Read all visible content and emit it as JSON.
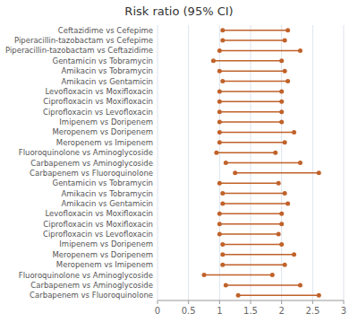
{
  "chart_data": {
    "type": "range",
    "orientation": "horizontal",
    "title": "Risk ratio (95% CI)",
    "color": "#c0622a",
    "categories": [
      "Ceftazidime vs Cefepime",
      "Piperacillin-tazobactam vs Cefepime",
      "Piperacillin-tazobactam vs Ceftazidime",
      "Gentamicin vs Tobramycin",
      "Amikacin vs Tobramycin",
      "Amikacin vs Gentamicin",
      "Levofloxacin vs Moxifloxacin",
      "Ciprofloxacin vs Moxifloxacin",
      "Ciprofloxacin vs Levofloxacin",
      "Imipenem vs Doripenem",
      "Meropenem vs Doripenem",
      "Meropenem vs Imipenem",
      "Fluoroquinolone vs Aminoglycoside",
      "Carbapenem vs Aminoglycoside",
      "Carbapenem vs Fluoroquinolone",
      "Gentamicin vs Tobramycin",
      "Amikacin vs Tobramycin",
      "Amikacin vs Gentamicin",
      "Levofloxacin vs Moxifloxacin",
      "Ciprofloxacin vs Moxifloxacin",
      "Ciprofloxacin vs Levofloxacin",
      "Imipenem vs Doripenem",
      "Meropenem vs Doripenem",
      "Meropenem vs Imipenem",
      "Fluoroquinolone vs Aminoglycoside",
      "Carbapenem vs Aminoglycoside",
      "Carbapenem vs Fluoroquinolone"
    ],
    "low": [
      1.05,
      1.05,
      1.0,
      0.9,
      1.0,
      1.05,
      1.0,
      1.0,
      1.0,
      1.0,
      1.0,
      1.0,
      0.95,
      1.1,
      1.25,
      1.0,
      1.05,
      1.05,
      1.0,
      1.0,
      1.0,
      1.05,
      1.05,
      1.05,
      0.75,
      1.1,
      1.3
    ],
    "high": [
      2.1,
      2.05,
      2.3,
      2.0,
      2.05,
      2.1,
      2.0,
      2.0,
      2.0,
      2.0,
      2.2,
      2.05,
      1.9,
      2.3,
      2.6,
      1.95,
      2.05,
      2.1,
      2.0,
      2.0,
      1.95,
      2.0,
      2.2,
      2.05,
      1.85,
      2.3,
      2.6
    ],
    "xlim": [
      0,
      3
    ],
    "xticks": [
      0,
      0.5,
      1,
      1.5,
      2,
      2.5,
      3
    ],
    "grid": true
  }
}
